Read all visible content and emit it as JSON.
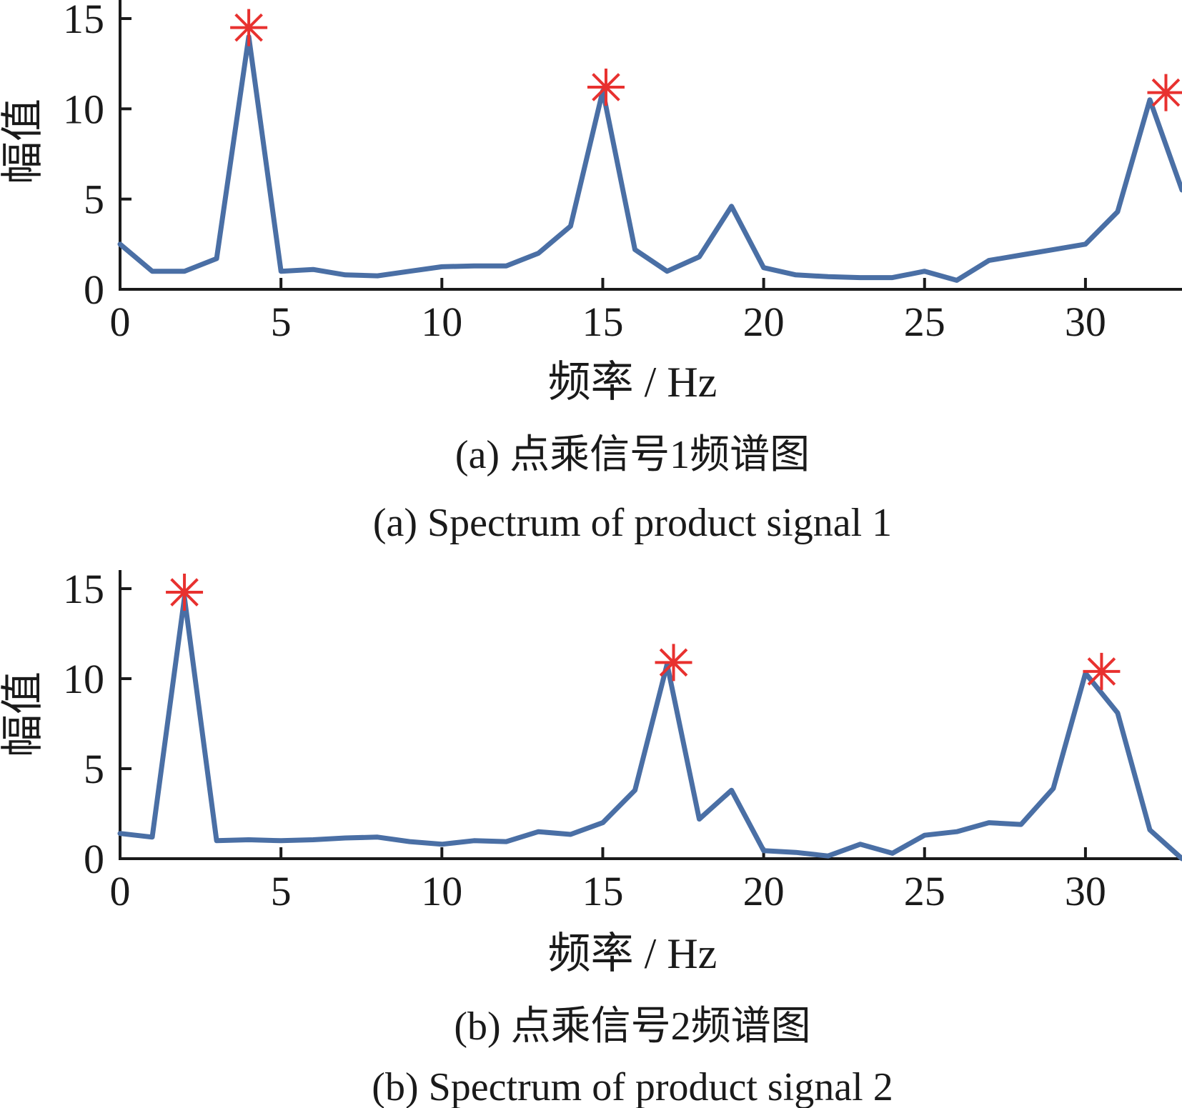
{
  "colors": {
    "line": "#4a6fa5",
    "peak_marker": "#e8312f",
    "axis": "#1a1a1a"
  },
  "chart_data": [
    {
      "type": "line",
      "id": "a",
      "xlabel": "频率 / Hz",
      "ylabel": "幅值",
      "caption_cn": "(a) 点乘信号1频谱图",
      "caption_en": "(a) Spectrum of product signal 1",
      "xlim": [
        0,
        33
      ],
      "ylim": [
        0,
        16
      ],
      "xticks": [
        0,
        5,
        10,
        15,
        20,
        25,
        30
      ],
      "xtick_labels": [
        "0",
        "5",
        "10",
        "15",
        "20",
        "25",
        "30"
      ],
      "yticks": [
        0,
        5,
        10,
        15
      ],
      "ytick_labels": [
        "0",
        "5",
        "10",
        "15"
      ],
      "grid": false,
      "x": [
        0,
        1,
        2,
        3,
        4,
        5,
        6,
        7,
        8,
        9,
        10,
        11,
        12,
        13,
        14,
        15,
        16,
        17,
        18,
        19,
        20,
        21,
        22,
        23,
        24,
        25,
        26,
        27,
        28,
        29,
        30,
        31,
        32,
        33
      ],
      "values": [
        2.5,
        1.0,
        1.0,
        1.7,
        14.0,
        1.0,
        1.1,
        0.8,
        0.75,
        1.0,
        1.25,
        1.3,
        1.3,
        2.0,
        3.5,
        11.0,
        2.2,
        1.0,
        1.8,
        4.6,
        1.2,
        0.8,
        0.7,
        0.65,
        0.65,
        1.0,
        0.5,
        1.6,
        1.9,
        2.2,
        2.5,
        4.3,
        10.5,
        5.5
      ],
      "peaks": [
        {
          "x": 4,
          "y": 14.5
        },
        {
          "x": 15.1,
          "y": 11.2
        },
        {
          "x": 32.5,
          "y": 10.9
        }
      ]
    },
    {
      "type": "line",
      "id": "b",
      "xlabel": "频率 / Hz",
      "ylabel": "幅值",
      "caption_cn": "(b) 点乘信号2频谱图",
      "caption_en": "(b) Spectrum of product signal 2",
      "xlim": [
        0,
        33
      ],
      "ylim": [
        0,
        16
      ],
      "xticks": [
        0,
        5,
        10,
        15,
        20,
        25,
        30
      ],
      "xtick_labels": [
        "0",
        "5",
        "10",
        "15",
        "20",
        "25",
        "30"
      ],
      "yticks": [
        0,
        5,
        10,
        15
      ],
      "ytick_labels": [
        "0",
        "5",
        "10",
        "15"
      ],
      "grid": false,
      "x": [
        0,
        1,
        2,
        3,
        4,
        5,
        6,
        7,
        8,
        9,
        10,
        11,
        12,
        13,
        14,
        15,
        16,
        17,
        18,
        19,
        20,
        21,
        22,
        23,
        24,
        25,
        26,
        27,
        28,
        29,
        30,
        31,
        32,
        33
      ],
      "values": [
        1.4,
        1.2,
        14.5,
        1.0,
        1.05,
        1.0,
        1.05,
        1.15,
        1.2,
        0.95,
        0.8,
        1.0,
        0.95,
        1.5,
        1.35,
        2.0,
        3.8,
        10.8,
        2.2,
        3.8,
        0.45,
        0.35,
        0.15,
        0.8,
        0.3,
        1.3,
        1.5,
        2.0,
        1.9,
        3.9,
        10.3,
        8.1,
        1.6,
        0.0
      ],
      "peaks": [
        {
          "x": 2,
          "y": 14.8
        },
        {
          "x": 17.2,
          "y": 10.9
        },
        {
          "x": 30.5,
          "y": 10.4
        }
      ]
    }
  ]
}
